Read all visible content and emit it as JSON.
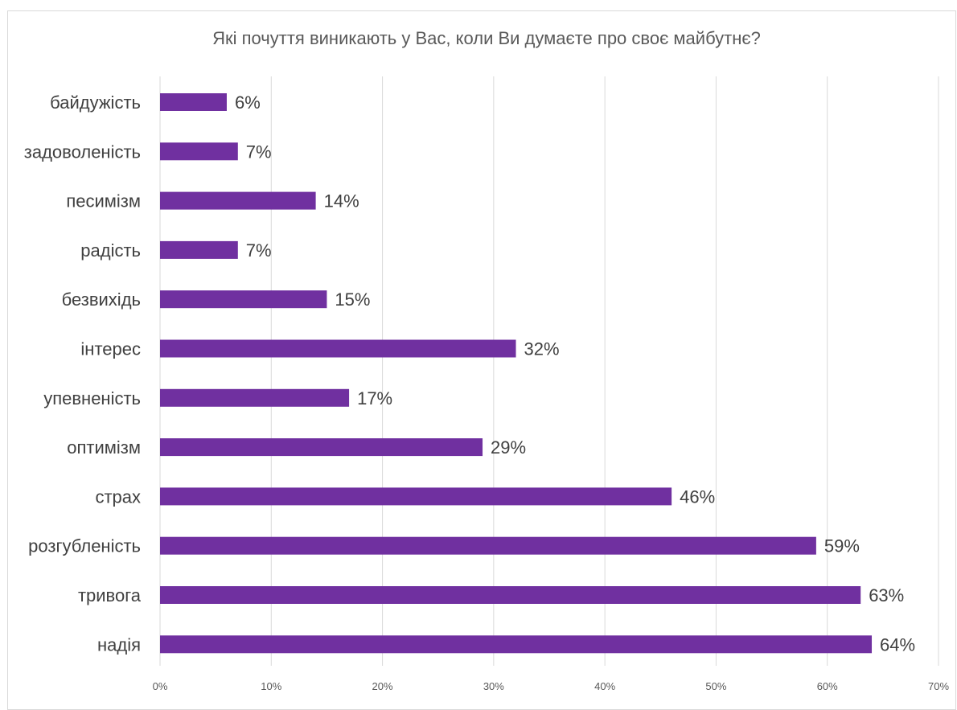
{
  "chart_data": {
    "type": "bar",
    "orientation": "horizontal",
    "title": "Які почуття виникають у Вас, коли Ви думаєте про своє майбутнє?",
    "categories": [
      "байдужість",
      "задоволеність",
      "песимізм",
      "радість",
      "безвихідь",
      "інтерес",
      "упевненість",
      "оптимізм",
      "страх",
      "розгубленість",
      "тривога",
      "надія"
    ],
    "values": [
      6,
      7,
      14,
      7,
      15,
      32,
      17,
      29,
      46,
      59,
      63,
      64
    ],
    "value_labels": [
      "6%",
      "7%",
      "14%",
      "7%",
      "15%",
      "32%",
      "17%",
      "29%",
      "46%",
      "59%",
      "63%",
      "64%"
    ],
    "xlim": [
      0,
      70
    ],
    "x_ticks": [
      "0%",
      "10%",
      "20%",
      "30%",
      "40%",
      "50%",
      "60%",
      "70%"
    ],
    "xlabel": "",
    "ylabel": "",
    "grid": "vertical",
    "legend": "none",
    "bar_color": "#7030a0"
  }
}
